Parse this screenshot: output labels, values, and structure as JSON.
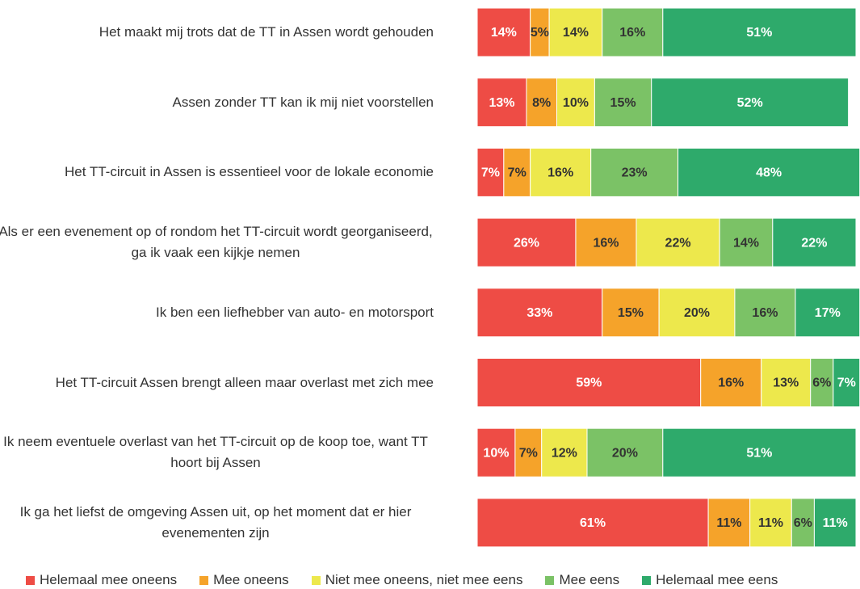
{
  "chart_data": {
    "type": "stacked-bar-horizontal",
    "categories": [
      "Het maakt mij trots dat de TT in Assen wordt gehouden",
      "Assen zonder TT kan ik mij niet voorstellen",
      "Het TT-circuit in Assen is essentieel voor de lokale economie",
      "Als er een evenement op of rondom het TT-circuit wordt georganiseerd, ga ik vaak een kijkje nemen",
      "Ik ben een liefhebber van auto- en motorsport",
      "Het TT-circuit Assen brengt alleen maar overlast met zich mee",
      "Ik neem eventuele overlast van het TT-circuit op de koop toe, want TT hoort bij Assen",
      "Ik ga het liefst de omgeving Assen uit, op het moment dat er hier evenementen zijn"
    ],
    "xlim": [
      0,
      100
    ],
    "legend": "bottom",
    "series": [
      {
        "name": "Helemaal mee oneens",
        "color": "#ee4c45",
        "values": [
          14,
          13,
          7,
          26,
          33,
          59,
          10,
          61
        ],
        "value_labels": [
          "14%",
          "13%",
          "7%",
          "26%",
          "33%",
          "59%",
          "10%",
          "61%"
        ]
      },
      {
        "name": "Mee oneens",
        "color": "#f5a32a",
        "values": [
          5,
          8,
          7,
          16,
          15,
          16,
          7,
          11
        ],
        "value_labels": [
          "5%",
          "8%",
          "7%",
          "16%",
          "15%",
          "16%",
          "7%",
          "11%"
        ]
      },
      {
        "name": "Niet mee oneens, niet mee eens",
        "color": "#ede84c",
        "values": [
          14,
          10,
          16,
          22,
          20,
          13,
          12,
          11
        ],
        "value_labels": [
          "14%",
          "10%",
          "16%",
          "22%",
          "20%",
          "13%",
          "12%",
          "11%"
        ]
      },
      {
        "name": "Mee eens",
        "color": "#7bc266",
        "values": [
          16,
          15,
          23,
          14,
          16,
          6,
          20,
          6
        ],
        "value_labels": [
          "16%",
          "15%",
          "23%",
          "14%",
          "16%",
          "6%",
          "20%",
          "6%"
        ]
      },
      {
        "name": "Helemaal mee eens",
        "color": "#2eaa6b",
        "values": [
          51,
          52,
          48,
          22,
          17,
          7,
          51,
          11
        ],
        "value_labels": [
          "51%",
          "52%",
          "48%",
          "22%",
          "17%",
          "7%",
          "51%",
          "11%"
        ]
      }
    ]
  }
}
